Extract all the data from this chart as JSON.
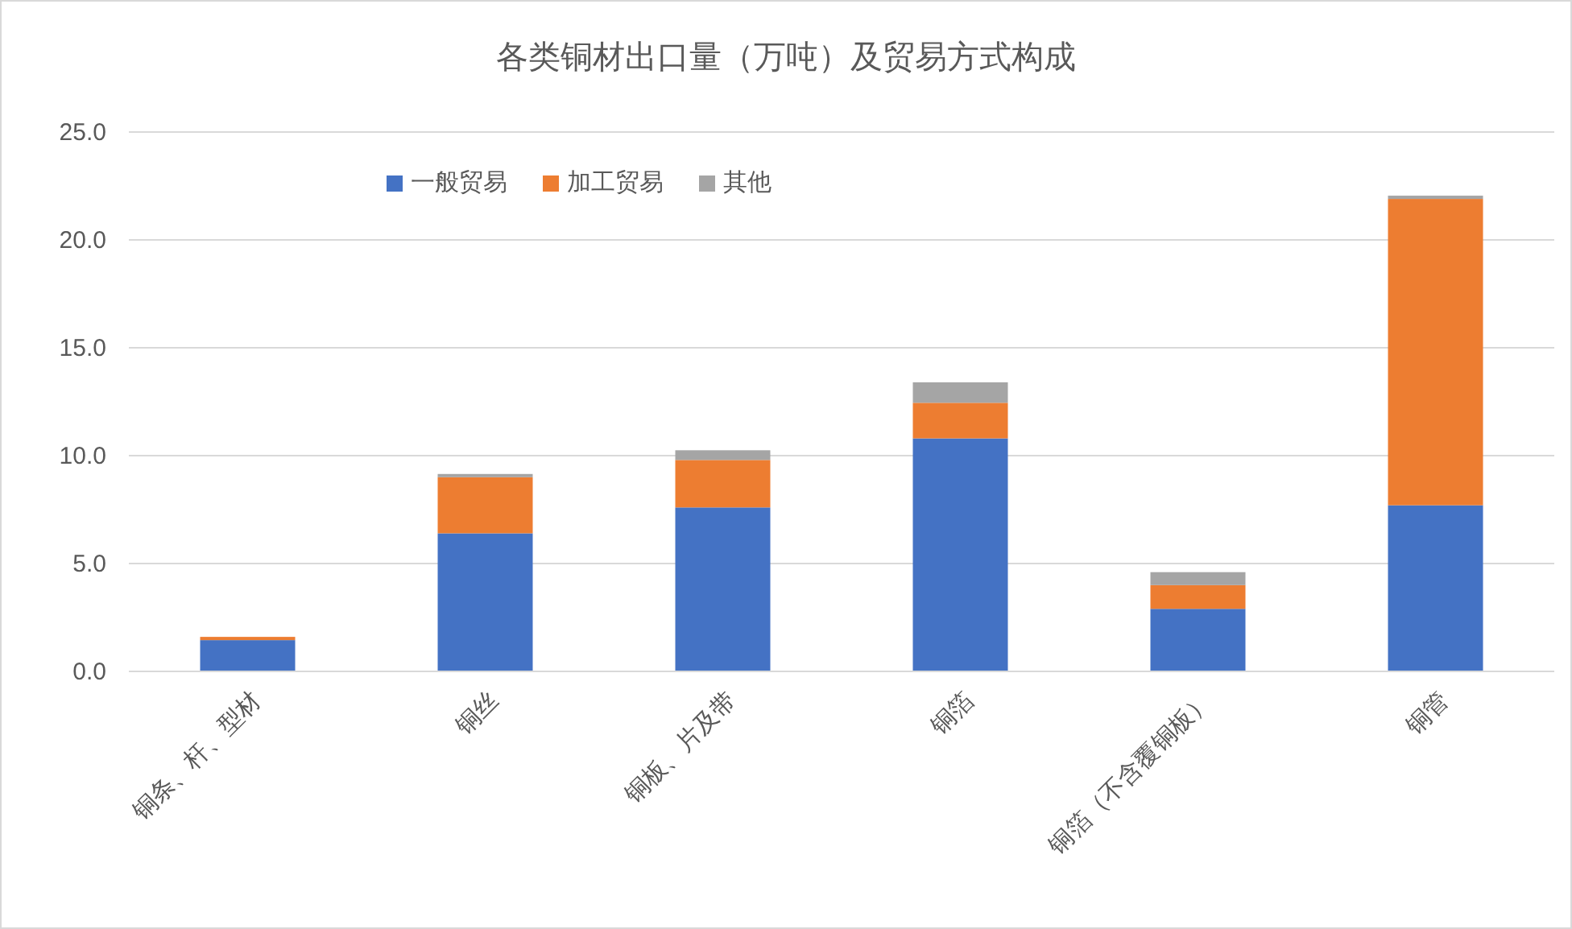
{
  "chart_data": {
    "type": "bar",
    "title": "各类铜材出口量（万吨）及贸易方式构成",
    "categories": [
      "铜条、杆、型材",
      "铜丝",
      "铜板、片及带",
      "铜箔",
      "铜箔（不含覆铜板）",
      "铜管"
    ],
    "stacked": true,
    "legend": "top left",
    "grid": "y",
    "ylim": [
      0,
      25
    ],
    "yticks": [
      {
        "value": 0,
        "label": "0.0"
      },
      {
        "value": 5,
        "label": "5.0"
      },
      {
        "value": 10,
        "label": "10.0"
      },
      {
        "value": 15,
        "label": "15.0"
      },
      {
        "value": 20,
        "label": "20.0"
      },
      {
        "value": 25,
        "label": "25.0"
      }
    ],
    "series": [
      {
        "name": "一般贸易",
        "color": "#4472c4",
        "values": [
          1.45,
          6.4,
          7.6,
          10.8,
          2.9,
          7.7
        ]
      },
      {
        "name": "加工贸易",
        "color": "#ed7d31",
        "values": [
          0.15,
          2.6,
          2.2,
          1.65,
          1.1,
          14.2
        ]
      },
      {
        "name": "其他",
        "color": "#a5a5a5",
        "values": [
          null,
          0.15,
          0.45,
          0.95,
          0.6,
          0.15
        ]
      }
    ]
  }
}
